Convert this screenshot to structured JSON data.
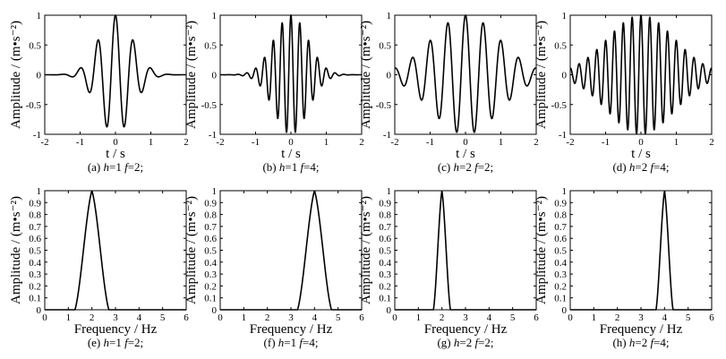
{
  "chart_data": [
    {
      "id": "a",
      "type": "line",
      "kind": "time",
      "h": 1,
      "f": 2,
      "xlabel": "t / s",
      "ylabel": "Amplitude / (m•s⁻²)",
      "xlim": [
        -2,
        2
      ],
      "ylim": [
        -1,
        1
      ],
      "xticks": [
        "-2",
        "-1",
        "0",
        "1",
        "2"
      ],
      "yticks": [
        "-1",
        "-0.5",
        "0",
        "0.5",
        "1"
      ],
      "caption": {
        "prefix": "(a)  ",
        "var_h": "h",
        "eq1": "=1 ",
        "var_f": "f",
        "eq2": "=2;"
      }
    },
    {
      "id": "b",
      "type": "line",
      "kind": "time",
      "h": 1,
      "f": 4,
      "xlabel": "t / s",
      "ylabel": "Amplitude / (m•s⁻²)",
      "xlim": [
        -2,
        2
      ],
      "ylim": [
        -1,
        1
      ],
      "xticks": [
        "-2",
        "-1",
        "0",
        "1",
        "2"
      ],
      "yticks": [
        "-1",
        "-0.5",
        "0",
        "0.5",
        "1"
      ],
      "caption": {
        "prefix": "(b)  ",
        "var_h": "h",
        "eq1": "=1 ",
        "var_f": "f",
        "eq2": "=4;"
      }
    },
    {
      "id": "c",
      "type": "line",
      "kind": "time",
      "h": 2,
      "f": 2,
      "xlabel": "t / s",
      "ylabel": "Amplitude / (m•s⁻²)",
      "xlim": [
        -2,
        2
      ],
      "ylim": [
        -1,
        1
      ],
      "xticks": [
        "-2",
        "-1",
        "0",
        "1",
        "2"
      ],
      "yticks": [
        "-1",
        "-0.5",
        "0",
        "0.5",
        "1"
      ],
      "caption": {
        "prefix": "(c)  ",
        "var_h": "h",
        "eq1": "=2 ",
        "var_f": "f",
        "eq2": "=2;"
      }
    },
    {
      "id": "d",
      "type": "line",
      "kind": "time",
      "h": 2,
      "f": 4,
      "xlabel": "t / s",
      "ylabel": "Amplitude / (m•s⁻²)",
      "xlim": [
        -2,
        2
      ],
      "ylim": [
        -1,
        1
      ],
      "xticks": [
        "-2",
        "-1",
        "0",
        "1",
        "2"
      ],
      "yticks": [
        "-1",
        "-0.5",
        "0",
        "0.5",
        "1"
      ],
      "caption": {
        "prefix": "(d)  ",
        "var_h": "h",
        "eq1": "=2 ",
        "var_f": "f",
        "eq2": "=4;"
      }
    },
    {
      "id": "e",
      "type": "line",
      "kind": "freq",
      "h": 1,
      "f": 2,
      "xlabel": "Frequency / Hz",
      "ylabel": "Amplitude / (m•s⁻²)",
      "xlim": [
        0,
        6
      ],
      "ylim": [
        0,
        1
      ],
      "xticks": [
        "0",
        "1",
        "2",
        "3",
        "4",
        "5",
        "6"
      ],
      "yticks": [
        "0",
        "0.1",
        "0.2",
        "0.3",
        "0.4",
        "0.5",
        "0.6",
        "0.7",
        "0.8",
        "0.9",
        "1"
      ],
      "caption": {
        "prefix": "(e)  ",
        "var_h": "h",
        "eq1": "=1 ",
        "var_f": "f",
        "eq2": "=2;"
      }
    },
    {
      "id": "f",
      "type": "line",
      "kind": "freq",
      "h": 1,
      "f": 4,
      "xlabel": "Frequency / Hz",
      "ylabel": "Amplitude / (m•s⁻²)",
      "xlim": [
        0,
        6
      ],
      "ylim": [
        0,
        1
      ],
      "xticks": [
        "0",
        "1",
        "2",
        "3",
        "4",
        "5",
        "6"
      ],
      "yticks": [
        "0",
        "0.1",
        "0.2",
        "0.3",
        "0.4",
        "0.5",
        "0.6",
        "0.7",
        "0.8",
        "0.9",
        "1"
      ],
      "caption": {
        "prefix": "(f)  ",
        "var_h": "h",
        "eq1": "=1 ",
        "var_f": "f",
        "eq2": "=4;"
      }
    },
    {
      "id": "g",
      "type": "line",
      "kind": "freq",
      "h": 2,
      "f": 2,
      "xlabel": "Frequency / Hz",
      "ylabel": "Amplitude / (m•s⁻²)",
      "xlim": [
        0,
        6
      ],
      "ylim": [
        0,
        1
      ],
      "xticks": [
        "0",
        "1",
        "2",
        "3",
        "4",
        "5",
        "6"
      ],
      "yticks": [
        "0",
        "0.1",
        "0.2",
        "0.3",
        "0.4",
        "0.5",
        "0.6",
        "0.7",
        "0.8",
        "0.9",
        "1"
      ],
      "caption": {
        "prefix": "(g)  ",
        "var_h": "h",
        "eq1": "=2 ",
        "var_f": "f",
        "eq2": "=2;"
      }
    },
    {
      "id": "h",
      "type": "line",
      "kind": "freq",
      "h": 2,
      "f": 4,
      "xlabel": "Frequency / Hz",
      "ylabel": "Amplitude / (m•s⁻²)",
      "xlim": [
        0,
        6
      ],
      "ylim": [
        0,
        1
      ],
      "xticks": [
        "0",
        "1",
        "2",
        "3",
        "4",
        "5",
        "6"
      ],
      "yticks": [
        "0",
        "0.1",
        "0.2",
        "0.3",
        "0.4",
        "0.5",
        "0.6",
        "0.7",
        "0.8",
        "0.9",
        "1"
      ],
      "caption": {
        "prefix": "(h)  ",
        "var_h": "h",
        "eq1": "=2 ",
        "var_f": "f",
        "eq2": "=4;"
      }
    }
  ]
}
